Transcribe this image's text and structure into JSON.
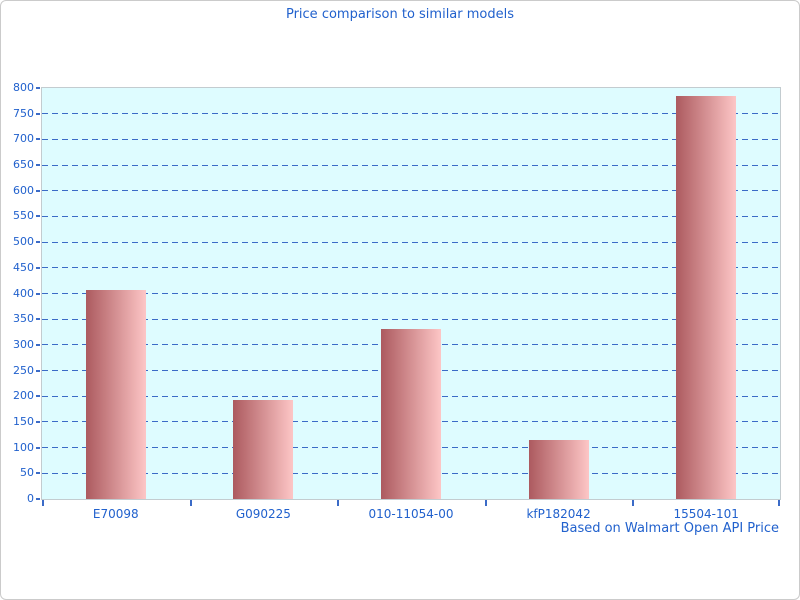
{
  "window": {
    "background": "#ffffff",
    "border_color": "#cbcbcb"
  },
  "header": {
    "title": "Price comparison to similar models"
  },
  "footer": {
    "caption": "Based on Walmart Open API Price"
  },
  "chart_data": {
    "type": "bar",
    "title": "Price comparison to similar models",
    "categories": [
      "E70098",
      "G090225",
      "010-11054-00",
      "kfP182042",
      "15504-101"
    ],
    "values": [
      407,
      192,
      331,
      115,
      784
    ],
    "series_name": "Price",
    "xlabel": "",
    "ylabel": "",
    "ylim": [
      0,
      800
    ],
    "ytick_step": 50,
    "yticks": [
      0,
      50,
      100,
      150,
      200,
      250,
      300,
      350,
      400,
      450,
      500,
      550,
      600,
      650,
      700,
      750,
      800
    ],
    "grid": "horizontal-dashed",
    "legend": "none",
    "annotation": "Based on Walmart Open API Price"
  },
  "colors": {
    "text_blue": "#2161cd",
    "grid_blue": "#3b6bc7",
    "plot_bg": "#defcff",
    "plot_border": "#c3ccd0",
    "bar_gradient_start": "#ac5a5f",
    "bar_gradient_end": "#fdc6c6"
  }
}
